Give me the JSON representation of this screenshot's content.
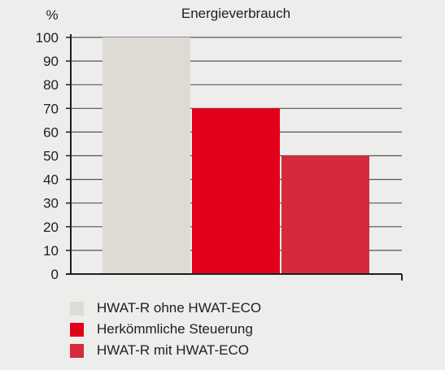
{
  "chart_data": {
    "type": "bar",
    "title": "Energieverbrauch",
    "ylabel": "%",
    "xlabel": "",
    "ylim": [
      0,
      100
    ],
    "yticks": [
      0,
      10,
      20,
      30,
      40,
      50,
      60,
      70,
      80,
      90,
      100
    ],
    "grid": true,
    "legend_position": "bottom",
    "categories": [
      "HWAT-R ohne HWAT-ECO",
      "Herkömmliche Steuerung",
      "HWAT-R mit HWAT-ECO"
    ],
    "values": [
      100,
      70,
      50
    ],
    "colors": [
      "#dedbd5",
      "#e2001a",
      "#d42a3c"
    ]
  },
  "style": {
    "background": "#ededeb",
    "grid_color": "#555555",
    "axis_color": "#1e1e1e"
  }
}
